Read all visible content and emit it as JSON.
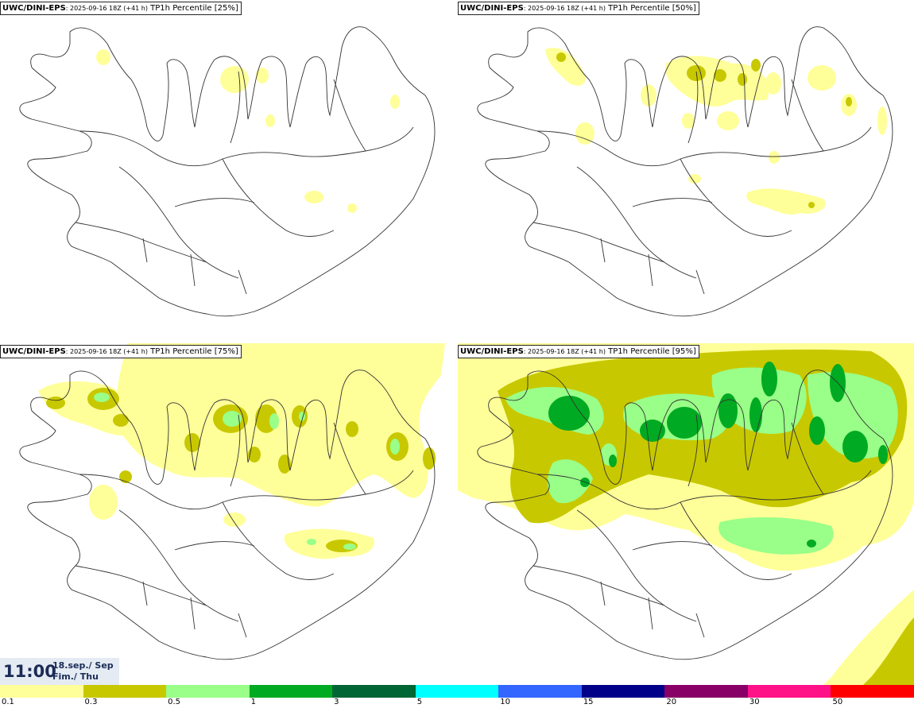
{
  "panels": [
    {
      "model": "UWC/DINI-EPS",
      "run": ": 2025-09-16 18Z (+41 h)",
      "field": "TP1h Percentile [25%]"
    },
    {
      "model": "UWC/DINI-EPS",
      "run": ": 2025-09-16 18Z (+41 h)",
      "field": "TP1h Percentile [50%]"
    },
    {
      "model": "UWC/DINI-EPS",
      "run": ": 2025-09-16 18Z (+41 h)",
      "field": "TP1h Percentile [75%]"
    },
    {
      "model": "UWC/DINI-EPS",
      "run": ": 2025-09-16 18Z (+41 h)",
      "field": "TP1h Percentile [95%]"
    }
  ],
  "valid_time": {
    "time": "11:00",
    "date_line1": "18.sep./ Sep",
    "date_line2": "Fim./ Thu"
  },
  "legend": {
    "colors": [
      "#ffff99",
      "#c8c800",
      "#99ff88",
      "#00aa22",
      "#006633",
      "#00ffff",
      "#3366ff",
      "#000088",
      "#880066",
      "#ff1188",
      "#ff0000"
    ],
    "labels": [
      "0.1",
      "0.3",
      "0.5",
      "1",
      "3",
      "5",
      "10",
      "15",
      "20",
      "30",
      "50"
    ]
  },
  "precip_colors": {
    "light": "#ffff99",
    "olive": "#c8c800",
    "lightgreen": "#99ff88",
    "green": "#00aa22"
  }
}
